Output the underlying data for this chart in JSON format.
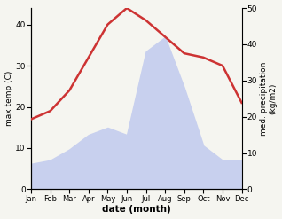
{
  "months": [
    "Jan",
    "Feb",
    "Mar",
    "Apr",
    "May",
    "Jun",
    "Jul",
    "Aug",
    "Sep",
    "Oct",
    "Nov",
    "Dec"
  ],
  "temperature": [
    17,
    19,
    24,
    32,
    40,
    44,
    41,
    37,
    33,
    32,
    30,
    21
  ],
  "precipitation": [
    7,
    8,
    11,
    15,
    17,
    15,
    38,
    42,
    28,
    12,
    8,
    8
  ],
  "temp_color": "#cd3333",
  "precip_fill_color": "#c8d0ee",
  "temp_ylim": [
    0,
    44
  ],
  "precip_ylim": [
    0,
    50
  ],
  "temp_yticks": [
    0,
    10,
    20,
    30,
    40
  ],
  "precip_yticks": [
    0,
    10,
    20,
    30,
    40,
    50
  ],
  "xlabel": "date (month)",
  "ylabel_left": "max temp (C)",
  "ylabel_right": "med. precipitation\n(kg/m2)",
  "bg_color": "#f5f5f0"
}
